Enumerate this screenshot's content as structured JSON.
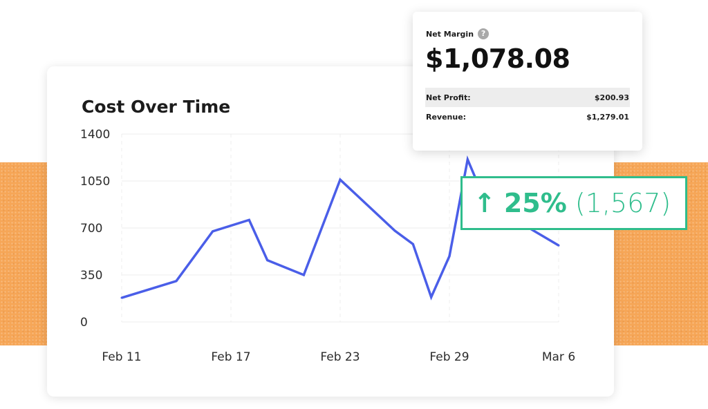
{
  "colors": {
    "accent_line": "#4a5ee8",
    "growth_green": "#2fbd8c",
    "background_band": "#f6a657"
  },
  "net_margin": {
    "label": "Net Margin",
    "help_icon": "?",
    "value": "$1,078.08",
    "rows": [
      {
        "label": "Net Profit:",
        "value": "$200.93"
      },
      {
        "label": "Revenue:",
        "value": "$1,279.01"
      }
    ]
  },
  "growth": {
    "arrow": "↑",
    "percent": "25%",
    "count": "(1,567)"
  },
  "chart_data": {
    "type": "line",
    "title": "Cost Over Time",
    "xlabel": "",
    "ylabel": "",
    "ylim": [
      0,
      1400
    ],
    "y_ticks": [
      "1400",
      "1050",
      "700",
      "350",
      "0"
    ],
    "x_ticks": [
      "Feb 11",
      "Feb 17",
      "Feb 23",
      "Feb 29",
      "Mar 6"
    ],
    "grid": true,
    "series": [
      {
        "x": [
          "Feb 11",
          "Feb 14",
          "Feb 16",
          "Feb 18",
          "Feb 19",
          "Feb 21",
          "Feb 23",
          "Feb 26",
          "Feb 27",
          "Feb 28",
          "Feb 29",
          "Mar 1",
          "Mar 2",
          "Mar 6"
        ],
        "values": [
          180,
          305,
          675,
          760,
          460,
          350,
          1060,
          680,
          580,
          185,
          490,
          1210,
          890,
          570
        ]
      }
    ]
  }
}
